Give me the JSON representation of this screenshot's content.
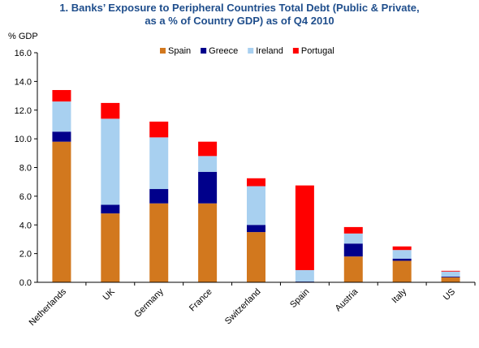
{
  "chart_data": {
    "type": "bar",
    "stacked": true,
    "title_line1": "1. Banks’ Exposure to Peripheral Countries Total Debt (Public & Private,",
    "title_line2": "as a % of Country GDP) as of Q4 2010",
    "ylabel": "% GDP",
    "xlabel": "",
    "ylim": [
      0,
      16
    ],
    "yticks": [
      "0.0",
      "2.0",
      "4.0",
      "6.0",
      "8.0",
      "10.0",
      "12.0",
      "14.0",
      "16.0"
    ],
    "grid": false,
    "legend_position": "top",
    "categories": [
      "Netherlands",
      "UK",
      "Germany",
      "France",
      "Switzerland",
      "Spain",
      "Austria",
      "Italy",
      "US"
    ],
    "series": [
      {
        "name": "Spain",
        "color": "#d2781e",
        "values": [
          9.8,
          4.8,
          5.5,
          5.5,
          3.5,
          0.0,
          1.8,
          1.5,
          0.35
        ]
      },
      {
        "name": "Greece",
        "color": "#00008b",
        "values": [
          0.7,
          0.6,
          1.0,
          2.2,
          0.5,
          0.05,
          0.9,
          0.15,
          0.05
        ]
      },
      {
        "name": "Ireland",
        "color": "#a8d0f0",
        "values": [
          2.1,
          6.0,
          3.6,
          1.1,
          2.7,
          0.8,
          0.7,
          0.6,
          0.35
        ]
      },
      {
        "name": "Portugal",
        "color": "#ff0000",
        "values": [
          0.8,
          1.1,
          1.1,
          1.0,
          0.55,
          5.9,
          0.45,
          0.25,
          0.05
        ]
      }
    ]
  }
}
